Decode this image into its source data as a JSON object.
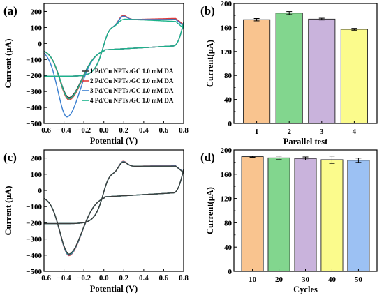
{
  "chart_data": [
    {
      "id": "a",
      "type": "line",
      "panel_label": "(a)",
      "xlabel": "Potential (V)",
      "ylabel": "Current (μA)",
      "xlim": [
        -0.6,
        0.8
      ],
      "ylim": [
        -500,
        250
      ],
      "xticks": [
        -0.6,
        -0.4,
        -0.2,
        0.0,
        0.2,
        0.4,
        0.6,
        0.8
      ],
      "xtick_labels": [
        "−0.6",
        "−0.4",
        "−0.2",
        "0.0",
        "0.2",
        "0.4",
        "0.6",
        "0.8"
      ],
      "yticks": [
        -500,
        -400,
        -300,
        -200,
        -100,
        0,
        100,
        200
      ],
      "ytick_labels": [
        "−500",
        "−400",
        "−300",
        "−200",
        "−100",
        "0",
        "100",
        "200"
      ],
      "legend_position": "right",
      "series": [
        {
          "name": "1 Pd/Cu NPTs /GC  1.0 mM DA",
          "color": "#3d3d3d",
          "peak_ox": [
            0.19,
            180
          ],
          "peak_red": [
            -0.35,
            -310
          ],
          "end_ox": 155
        },
        {
          "name": "2 Pd/Cu NPTs /GC  1.0 mM DA",
          "color": "#e03a3a",
          "peak_ox": [
            0.19,
            183
          ],
          "peak_red": [
            -0.35,
            -325
          ],
          "end_ox": 158
        },
        {
          "name": "3 Pd/Cu NPTs /GC  1.0 mM DA",
          "color": "#3a7fd0",
          "peak_ox": [
            0.19,
            178
          ],
          "peak_red": [
            -0.37,
            -430
          ],
          "end_ox": 150
        },
        {
          "name": "4 Pd/Cu NPTs /GC  1.0 mM DA",
          "color": "#1bb38a",
          "peak_ox": [
            0.19,
            158
          ],
          "peak_red": [
            -0.35,
            -318
          ],
          "end_ox": 135
        }
      ]
    },
    {
      "id": "b",
      "type": "bar",
      "panel_label": "(b)",
      "xlabel": "Parallel test",
      "ylabel": "Current(μA)",
      "ylim": [
        0,
        200
      ],
      "yticks": [
        0,
        40,
        80,
        120,
        160,
        200
      ],
      "categories": [
        "1",
        "2",
        "3",
        "4"
      ],
      "values": [
        173,
        184,
        174,
        157
      ],
      "errors": [
        2,
        2.5,
        1.5,
        1.5
      ],
      "colors": [
        "#f9c48f",
        "#82d68e",
        "#c9b3dc",
        "#fbfb8c"
      ]
    },
    {
      "id": "c",
      "type": "line",
      "panel_label": "(c)",
      "xlabel": "Potential (V)",
      "ylabel": "Current (μA)",
      "xlim": [
        -0.6,
        0.8
      ],
      "ylim": [
        -500,
        250
      ],
      "xticks": [
        -0.6,
        -0.4,
        -0.2,
        0.0,
        0.2,
        0.4,
        0.6,
        0.8
      ],
      "xtick_labels": [
        "−0.6",
        "−0.4",
        "−0.2",
        "0.0",
        "0.2",
        "0.4",
        "0.6",
        "0.8"
      ],
      "yticks": [
        -500,
        -400,
        -300,
        -200,
        -100,
        0,
        100,
        200
      ],
      "ytick_labels": [
        "−500",
        "−400",
        "−300",
        "−200",
        "−100",
        "0",
        "100",
        "200"
      ],
      "series": [
        {
          "color": "#e03a3a",
          "peak_ox": [
            0.19,
            188
          ],
          "peak_red": [
            -0.35,
            -375
          ],
          "end_ox": 152
        },
        {
          "color": "#3a7fd0",
          "peak_ox": [
            0.19,
            186
          ],
          "peak_red": [
            -0.35,
            -372
          ],
          "end_ox": 152
        },
        {
          "color": "#1bb38a",
          "peak_ox": [
            0.19,
            184
          ],
          "peak_red": [
            -0.35,
            -368
          ],
          "end_ox": 150
        },
        {
          "color": "#3d3d3d",
          "peak_ox": [
            0.19,
            183
          ],
          "peak_red": [
            -0.35,
            -365
          ],
          "end_ox": 150
        }
      ]
    },
    {
      "id": "d",
      "type": "bar",
      "panel_label": "(d)",
      "xlabel": "Cycles",
      "ylabel": "Current(μA)",
      "ylim": [
        0,
        200
      ],
      "yticks": [
        0,
        40,
        80,
        120,
        160,
        200
      ],
      "categories": [
        "10",
        "20",
        "30",
        "40",
        "50"
      ],
      "values": [
        189,
        187,
        186,
        184,
        183
      ],
      "errors": [
        1,
        3,
        2.5,
        6,
        3.5
      ],
      "colors": [
        "#f9c48f",
        "#82d68e",
        "#c9b3dc",
        "#fbfb8c",
        "#9cc1f3"
      ]
    }
  ]
}
